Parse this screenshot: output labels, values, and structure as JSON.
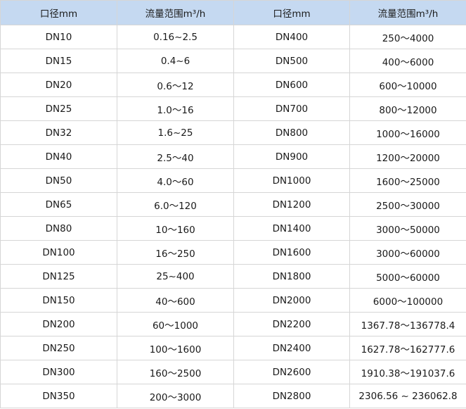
{
  "headers": [
    "口径mm",
    "流量范围m³/h",
    "口径mm",
    "流量范围m³/h"
  ],
  "rows": [
    [
      "DN10",
      "0.16~2.5",
      "DN400",
      "250～4000"
    ],
    [
      "DN15",
      "0.4~6",
      "DN500",
      "400～6000"
    ],
    [
      "DN20",
      "0.6～12",
      "DN600",
      "600～10000"
    ],
    [
      "DN25",
      "1.0～16",
      "DN700",
      "800～12000"
    ],
    [
      "DN32",
      "1.6~25",
      "DN800",
      "1000～16000"
    ],
    [
      "DN40",
      "2.5～40",
      "DN900",
      "1200～20000"
    ],
    [
      "DN50",
      "4.0～60",
      "DN1000",
      "1600～25000"
    ],
    [
      "DN65",
      "6.0～120",
      "DN1200",
      "2500～30000"
    ],
    [
      "DN80",
      "10～160",
      "DN1400",
      "3000～50000"
    ],
    [
      "DN100",
      "16～250",
      "DN1600",
      "3000～60000"
    ],
    [
      "DN125",
      "25~400",
      "DN1800",
      "5000～60000"
    ],
    [
      "DN150",
      "40～600",
      "DN2000",
      "6000～100000"
    ],
    [
      "DN200",
      "60～1000",
      "DN2200",
      "1367.78～136778.4"
    ],
    [
      "DN250",
      "100～1600",
      "DN2400",
      "1627.78～162777.6"
    ],
    [
      "DN300",
      "160～2500",
      "DN2600",
      "1910.38～191037.6"
    ],
    [
      "DN350",
      "200～3000",
      "DN2800",
      "2306.56 ~ 236062.8"
    ]
  ],
  "colors": {
    "header_bg": "#c5d9f1",
    "grid": "#d6d6d6",
    "text": "#1a1a1a"
  }
}
